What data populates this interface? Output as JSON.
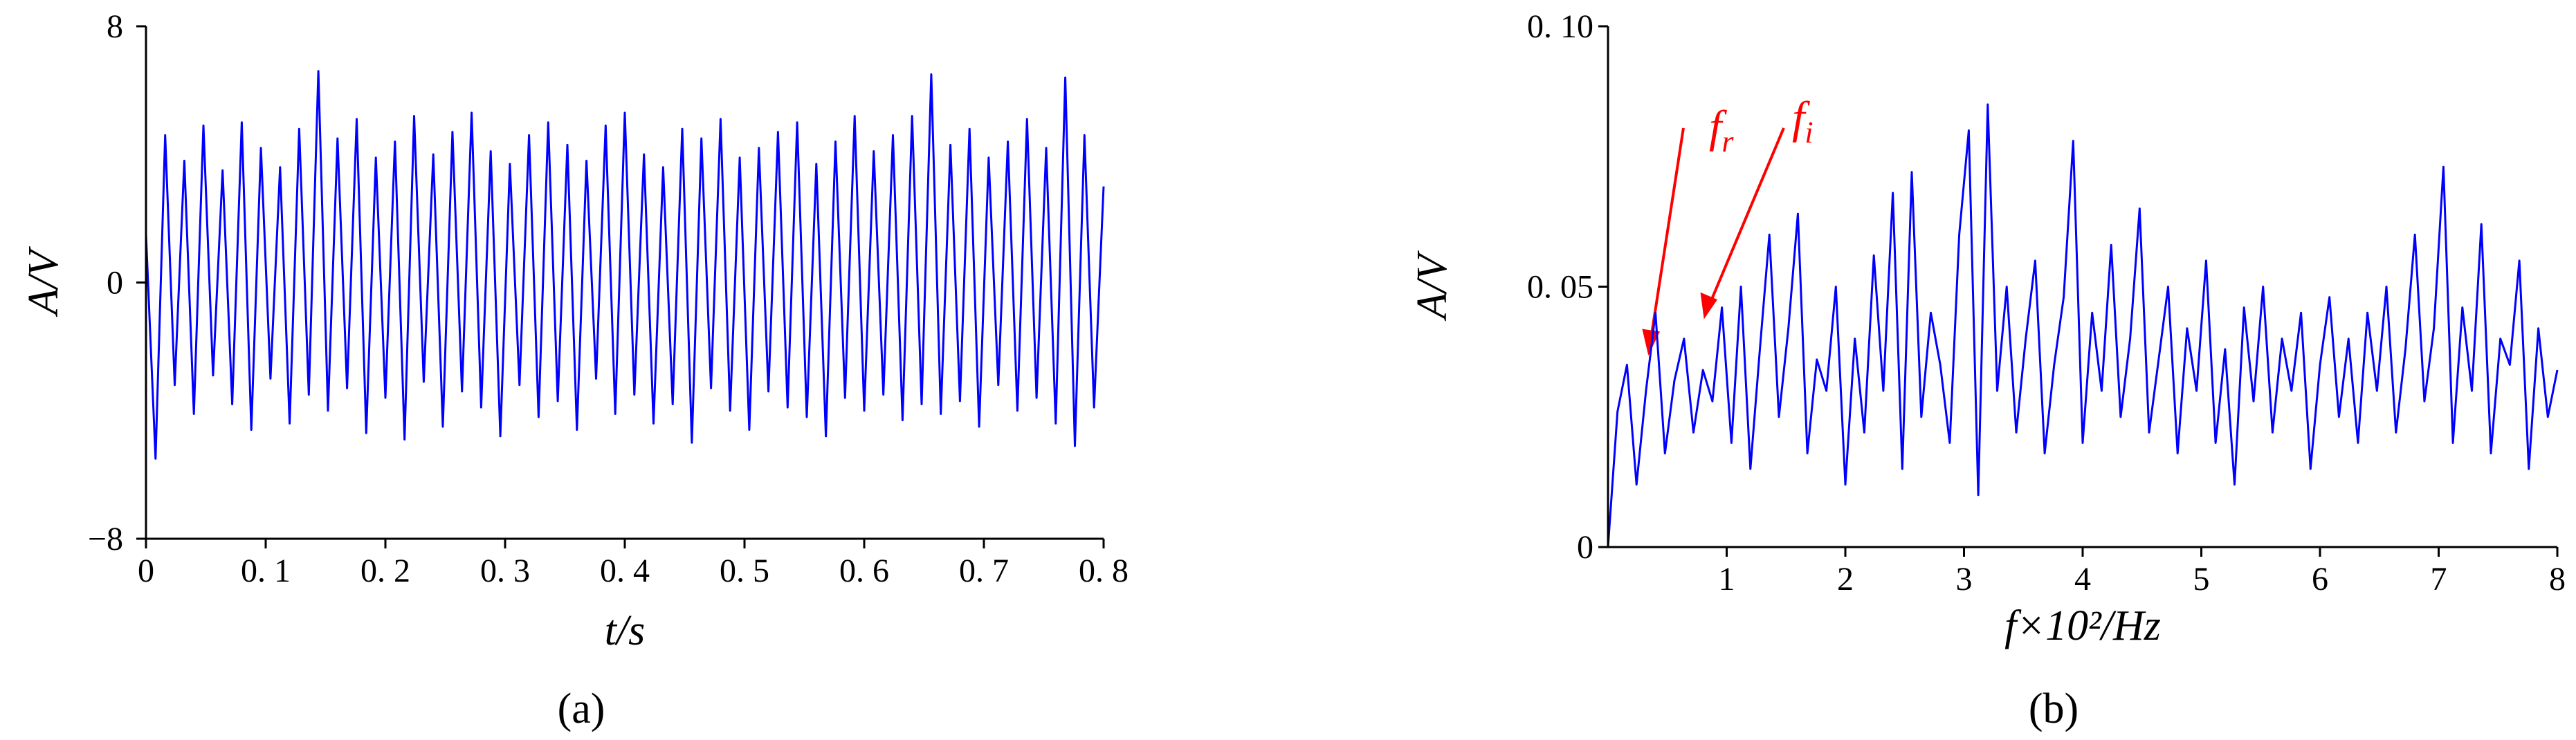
{
  "chart_data": [
    {
      "type": "line",
      "panel_label": "(a)",
      "xlabel": "t/s",
      "ylabel": "A/V",
      "color": "#0000ff",
      "xlim": [
        0,
        0.8
      ],
      "ylim": [
        -8,
        8
      ],
      "xticks": [
        0,
        {
          "value": 0.1,
          "label": "0. 1"
        },
        {
          "value": 0.2,
          "label": "0. 2"
        },
        {
          "value": 0.3,
          "label": "0. 3"
        },
        {
          "value": 0.4,
          "label": "0. 4"
        },
        {
          "value": 0.5,
          "label": "0. 5"
        },
        {
          "value": 0.6,
          "label": "0. 6"
        },
        {
          "value": 0.7,
          "label": "0. 7"
        },
        {
          "value": 0.8,
          "label": "0. 8"
        }
      ],
      "yticks": [
        {
          "value": -8,
          "label": "−8"
        },
        0,
        8
      ],
      "x": [
        0,
        0.008,
        0.016,
        0.024,
        0.032,
        0.04,
        0.048,
        0.056,
        0.064,
        0.072,
        0.08,
        0.088,
        0.096,
        0.104,
        0.112,
        0.12,
        0.128,
        0.136,
        0.144,
        0.152,
        0.16,
        0.168,
        0.176,
        0.184,
        0.192,
        0.2,
        0.208,
        0.216,
        0.224,
        0.232,
        0.24,
        0.248,
        0.256,
        0.264,
        0.272,
        0.28,
        0.288,
        0.296,
        0.304,
        0.312,
        0.32,
        0.328,
        0.336,
        0.344,
        0.352,
        0.36,
        0.368,
        0.376,
        0.384,
        0.392,
        0.4,
        0.408,
        0.416,
        0.424,
        0.432,
        0.44,
        0.448,
        0.456,
        0.464,
        0.472,
        0.48,
        0.488,
        0.496,
        0.504,
        0.512,
        0.52,
        0.528,
        0.536,
        0.544,
        0.552,
        0.56,
        0.568,
        0.576,
        0.584,
        0.592,
        0.6,
        0.608,
        0.616,
        0.624,
        0.632,
        0.64,
        0.648,
        0.656,
        0.664,
        0.672,
        0.68,
        0.688,
        0.696,
        0.704,
        0.712,
        0.72,
        0.728,
        0.736,
        0.744,
        0.752,
        0.76,
        0.768,
        0.776,
        0.784,
        0.792,
        0.8
      ],
      "values": [
        1.5,
        -5.5,
        4.6,
        -3.2,
        3.8,
        -4.1,
        4.9,
        -2.9,
        3.5,
        -3.8,
        5.0,
        -4.6,
        4.2,
        -3.0,
        3.6,
        -4.4,
        4.8,
        -3.5,
        6.6,
        -4.0,
        4.5,
        -3.3,
        5.1,
        -4.7,
        3.9,
        -3.6,
        4.4,
        -4.9,
        5.2,
        -3.1,
        4.0,
        -4.5,
        4.7,
        -3.4,
        5.3,
        -3.9,
        4.1,
        -4.8,
        3.7,
        -3.2,
        4.6,
        -4.2,
        5.0,
        -3.7,
        4.3,
        -4.6,
        3.8,
        -3.0,
        4.9,
        -4.1,
        5.3,
        -3.5,
        4.0,
        -4.4,
        3.6,
        -3.8,
        4.8,
        -5.0,
        4.5,
        -3.3,
        5.1,
        -4.0,
        3.9,
        -4.6,
        4.2,
        -3.4,
        4.7,
        -3.9,
        5.0,
        -4.2,
        3.7,
        -4.8,
        4.4,
        -3.6,
        5.2,
        -4.0,
        4.1,
        -3.5,
        4.6,
        -4.3,
        5.2,
        -3.8,
        6.5,
        -4.1,
        4.3,
        -3.7,
        4.8,
        -4.5,
        3.9,
        -3.2,
        4.4,
        -4.0,
        5.1,
        -3.6,
        4.2,
        -4.4,
        6.4,
        -5.1,
        4.6,
        -3.9,
        3.0
      ]
    },
    {
      "type": "line",
      "panel_label": "(b)",
      "xlabel": "f×10²/Hz",
      "ylabel": "A/V",
      "color": "#0000ff",
      "xlim": [
        0,
        8
      ],
      "ylim": [
        0,
        0.1
      ],
      "xticks": [
        1,
        2,
        3,
        4,
        5,
        6,
        7,
        8
      ],
      "yticks": [
        0,
        {
          "value": 0.05,
          "label": "0. 05"
        },
        {
          "value": 0.1,
          "label": "0. 10"
        }
      ],
      "annotations": [
        {
          "text": "f",
          "subscript": "r"
        },
        {
          "text": "f",
          "subscript": "i"
        }
      ],
      "x": [
        0,
        0.08,
        0.16,
        0.24,
        0.32,
        0.4,
        0.48,
        0.56,
        0.64,
        0.72,
        0.8,
        0.88,
        0.96,
        1.04,
        1.12,
        1.2,
        1.28,
        1.36,
        1.44,
        1.52,
        1.6,
        1.68,
        1.76,
        1.84,
        1.92,
        2,
        2.08,
        2.16,
        2.24,
        2.32,
        2.4,
        2.48,
        2.56,
        2.64,
        2.72,
        2.8,
        2.88,
        2.96,
        3.04,
        3.12,
        3.2,
        3.28,
        3.36,
        3.44,
        3.52,
        3.6,
        3.68,
        3.76,
        3.84,
        3.92,
        4,
        4.08,
        4.16,
        4.24,
        4.32,
        4.4,
        4.48,
        4.56,
        4.64,
        4.72,
        4.8,
        4.88,
        4.96,
        5.04,
        5.12,
        5.2,
        5.28,
        5.36,
        5.44,
        5.52,
        5.6,
        5.68,
        5.76,
        5.84,
        5.92,
        6,
        6.08,
        6.16,
        6.24,
        6.32,
        6.4,
        6.48,
        6.56,
        6.64,
        6.72,
        6.8,
        6.88,
        6.96,
        7.04,
        7.12,
        7.2,
        7.28,
        7.36,
        7.44,
        7.52,
        7.6,
        7.68,
        7.76,
        7.84,
        7.92,
        8
      ],
      "values": [
        0,
        0.026,
        0.035,
        0.012,
        0.03,
        0.045,
        0.018,
        0.032,
        0.04,
        0.022,
        0.034,
        0.028,
        0.046,
        0.02,
        0.05,
        0.015,
        0.038,
        0.06,
        0.025,
        0.042,
        0.064,
        0.018,
        0.036,
        0.03,
        0.05,
        0.012,
        0.04,
        0.022,
        0.056,
        0.03,
        0.068,
        0.015,
        0.072,
        0.025,
        0.045,
        0.035,
        0.02,
        0.06,
        0.08,
        0.01,
        0.085,
        0.03,
        0.05,
        0.022,
        0.04,
        0.055,
        0.018,
        0.035,
        0.048,
        0.078,
        0.02,
        0.045,
        0.03,
        0.058,
        0.025,
        0.04,
        0.065,
        0.022,
        0.036,
        0.05,
        0.018,
        0.042,
        0.03,
        0.055,
        0.02,
        0.038,
        0.012,
        0.046,
        0.028,
        0.05,
        0.022,
        0.04,
        0.03,
        0.045,
        0.015,
        0.035,
        0.048,
        0.025,
        0.04,
        0.02,
        0.045,
        0.03,
        0.05,
        0.022,
        0.038,
        0.06,
        0.028,
        0.042,
        0.073,
        0.02,
        0.046,
        0.03,
        0.062,
        0.018,
        0.04,
        0.035,
        0.055,
        0.015,
        0.042,
        0.025,
        0.034
      ]
    }
  ]
}
